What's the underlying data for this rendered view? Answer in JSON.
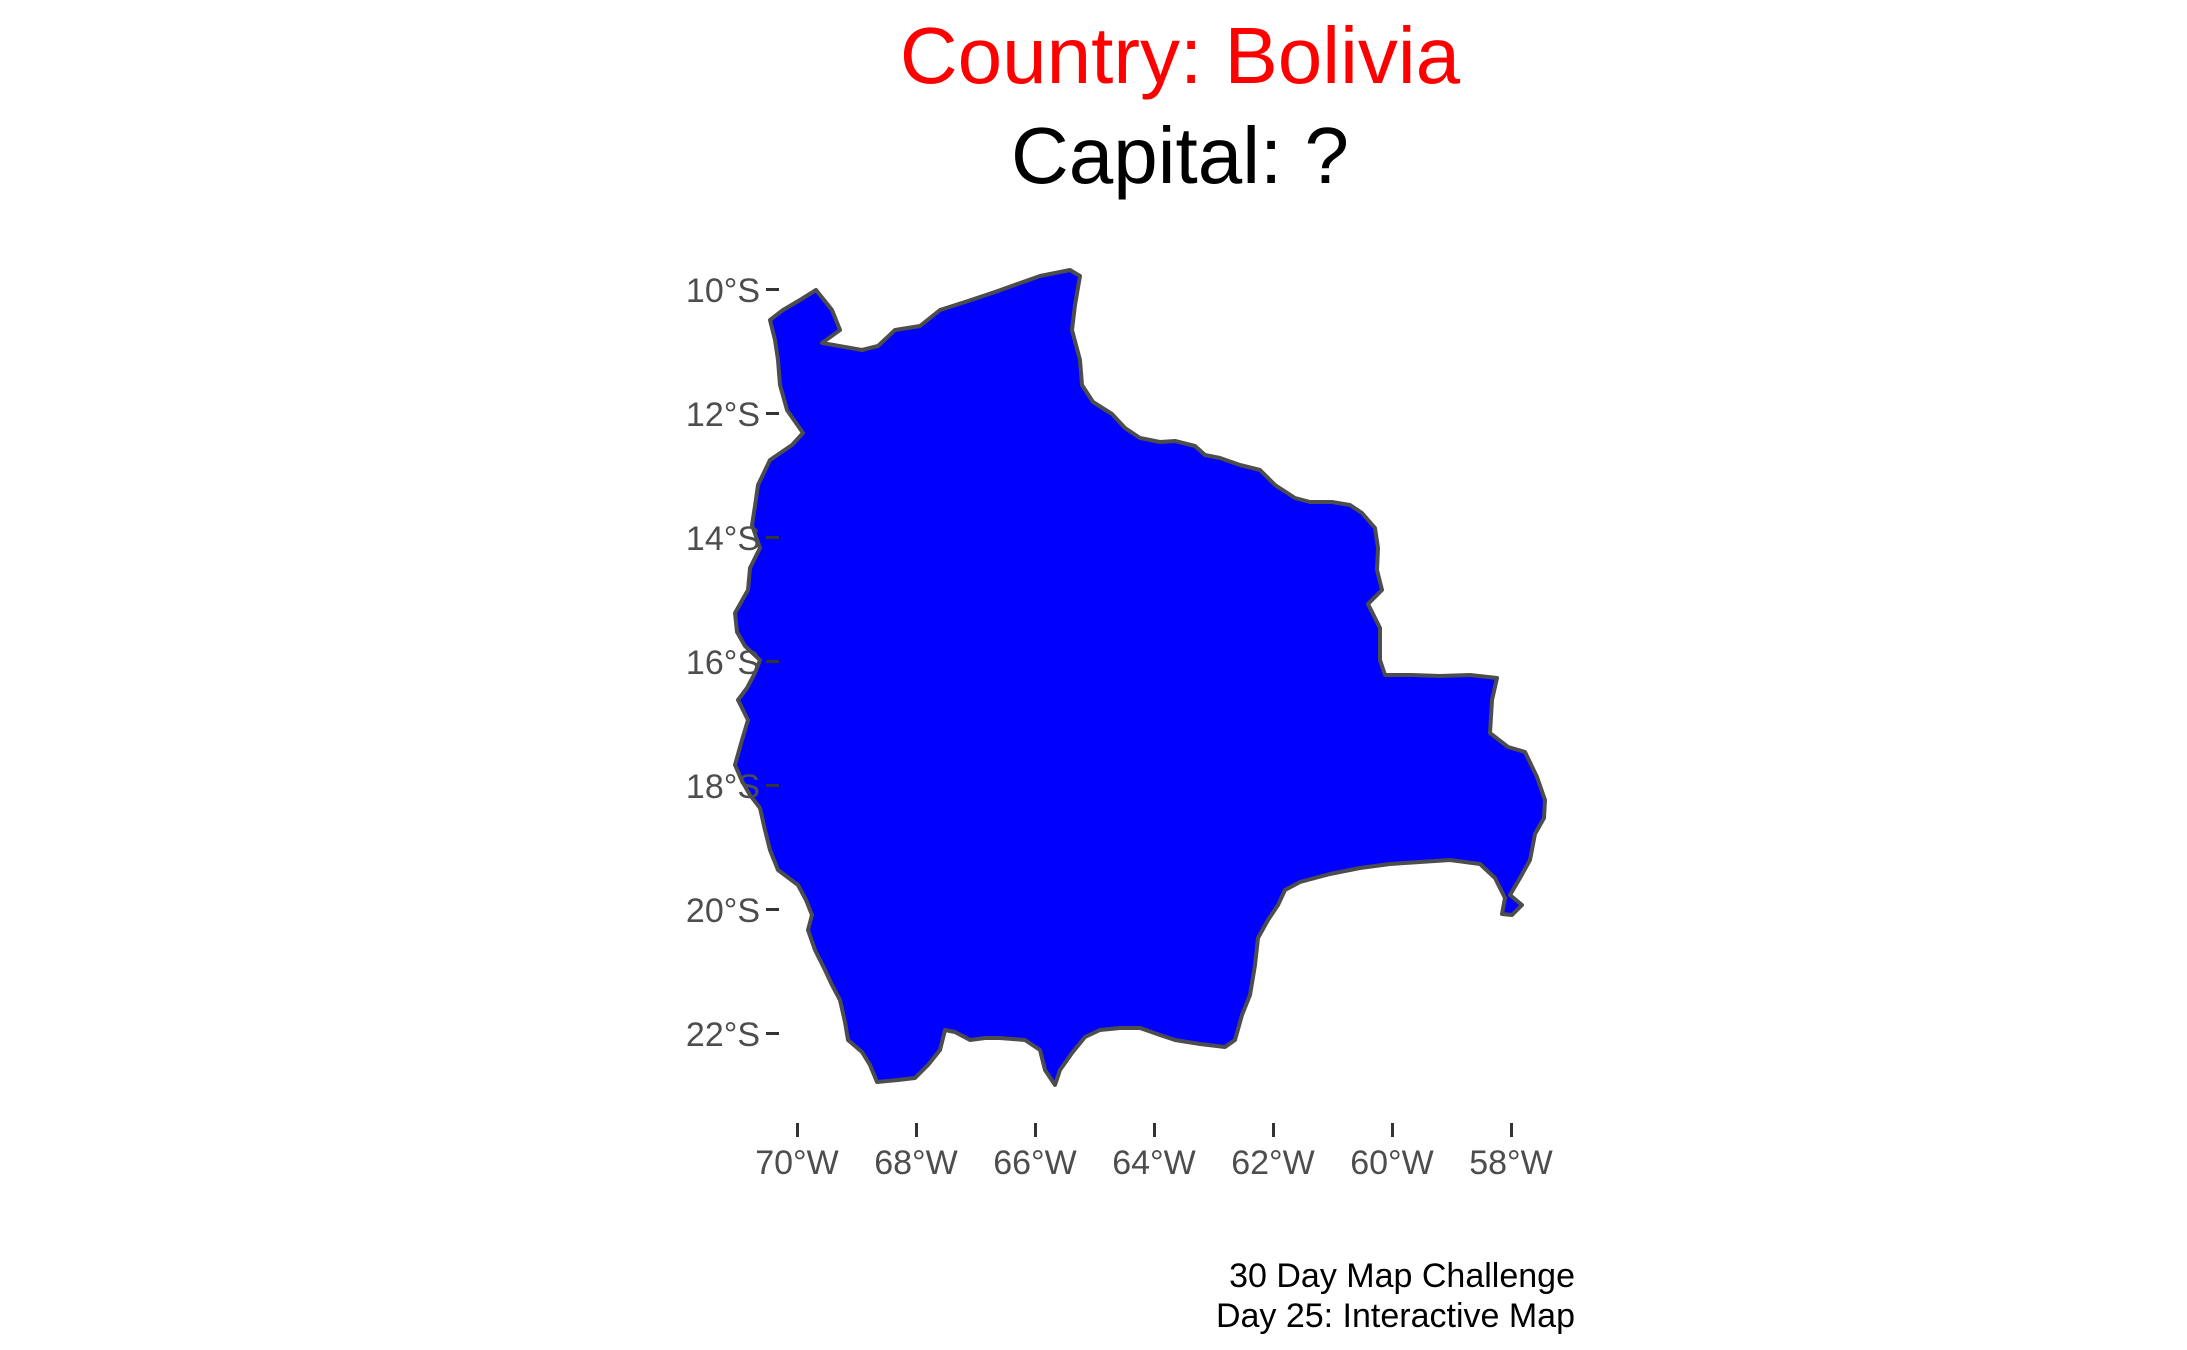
{
  "title": {
    "country_line": "Country: Bolivia",
    "capital_line": "Capital: ?",
    "country_color": "#ff0000",
    "capital_color": "#000000"
  },
  "map": {
    "region": "Bolivia",
    "fill_color": "#0000ff",
    "border_color": "#4d4d4d",
    "y_axis_labels": [
      "10°S",
      "12°S",
      "14°S",
      "16°S",
      "18°S",
      "20°S",
      "22°S"
    ],
    "x_axis_labels": [
      "70°W",
      "68°W",
      "66°W",
      "64°W",
      "62°W",
      "60°W",
      "58°W"
    ]
  },
  "caption": {
    "line1": "30 Day Map Challenge",
    "line2": "Day 25: Interactive Map"
  }
}
